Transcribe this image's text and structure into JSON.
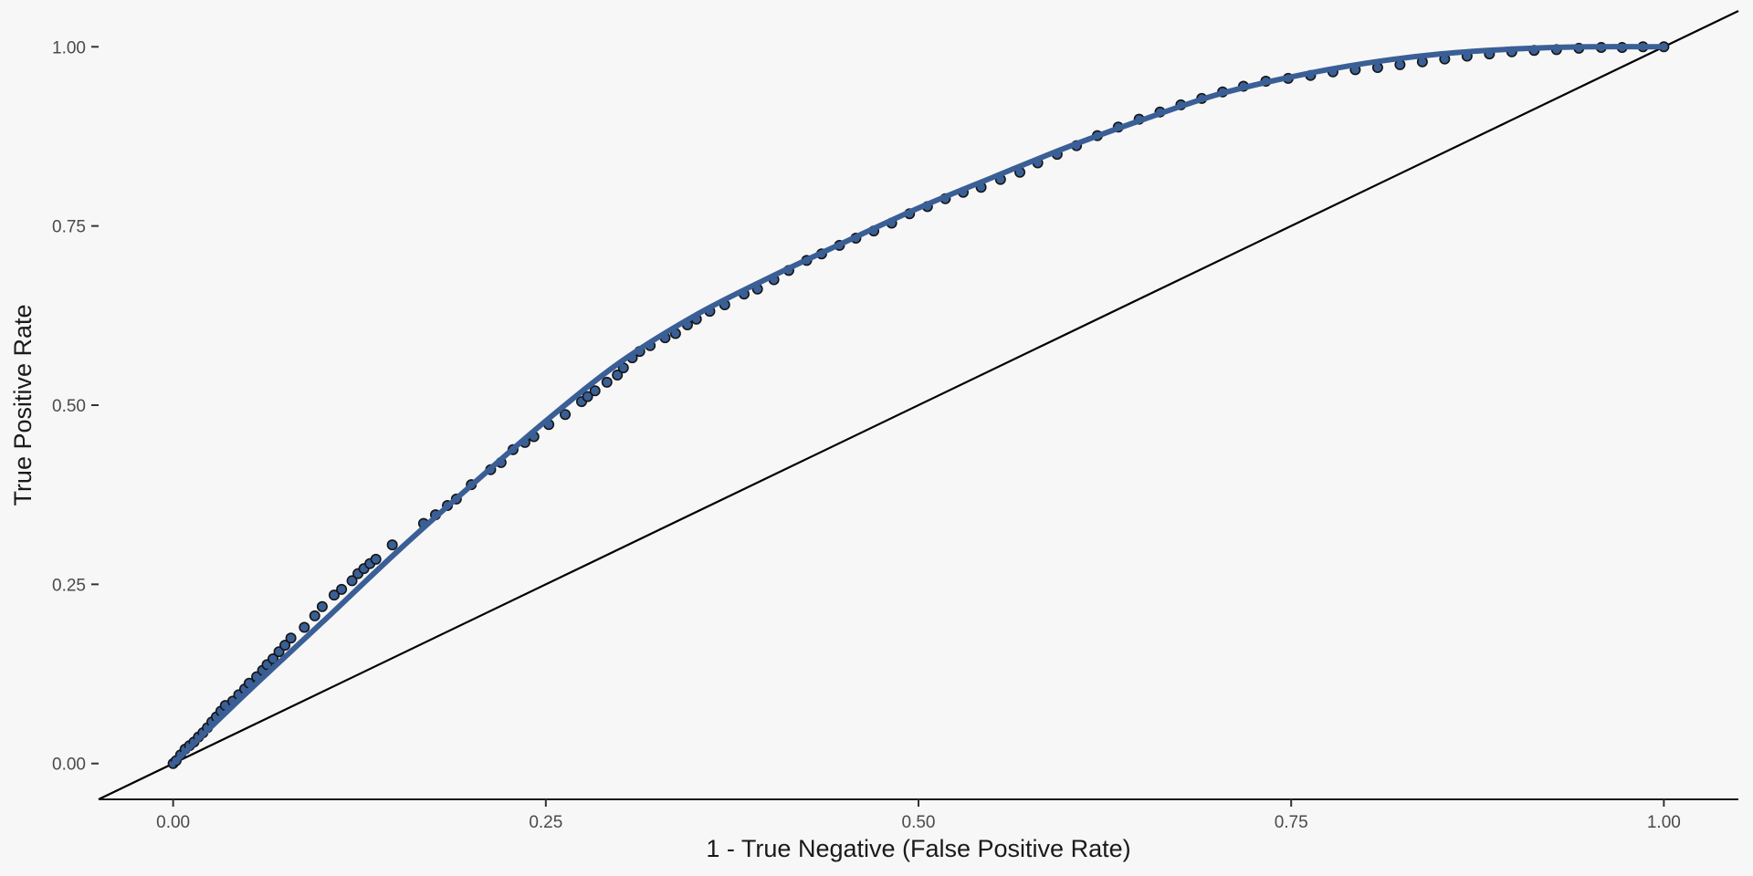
{
  "chart_data": {
    "type": "scatter",
    "title": "",
    "xlabel": "1 - True Negative (False Positive Rate)",
    "ylabel": "True Positive Rate",
    "xlim": [
      -0.05,
      1.05
    ],
    "ylim": [
      -0.05,
      1.05
    ],
    "x_ticks": [
      0,
      0.25,
      0.5,
      0.75,
      1
    ],
    "x_tick_labels": [
      "0.00",
      "0.25",
      "0.50",
      "0.75",
      "1.00"
    ],
    "y_ticks": [
      0,
      0.25,
      0.5,
      0.75,
      1
    ],
    "y_tick_labels": [
      "0.00",
      "0.25",
      "0.50",
      "0.75",
      "1.00"
    ],
    "grid": false,
    "legend": "none",
    "colors": {
      "background": "#f8f7f8",
      "point_fill": "#3a5f96",
      "point_stroke": "#151515",
      "smooth_line": "#3a5f96",
      "reference_line": "#000000"
    },
    "reference_line": {
      "intercept": 0,
      "slope": 1
    },
    "series": [
      {
        "points": [
          [
            0.0,
            0.0
          ],
          [
            0.002,
            0.004
          ],
          [
            0.005,
            0.012
          ],
          [
            0.008,
            0.02
          ],
          [
            0.011,
            0.025
          ],
          [
            0.014,
            0.03
          ],
          [
            0.017,
            0.037
          ],
          [
            0.02,
            0.043
          ],
          [
            0.023,
            0.05
          ],
          [
            0.026,
            0.058
          ],
          [
            0.029,
            0.065
          ],
          [
            0.032,
            0.073
          ],
          [
            0.035,
            0.081
          ],
          [
            0.04,
            0.087
          ],
          [
            0.044,
            0.096
          ],
          [
            0.048,
            0.104
          ],
          [
            0.051,
            0.112
          ],
          [
            0.056,
            0.121
          ],
          [
            0.06,
            0.13
          ],
          [
            0.063,
            0.138
          ],
          [
            0.067,
            0.146
          ],
          [
            0.071,
            0.156
          ],
          [
            0.075,
            0.165
          ],
          [
            0.079,
            0.175
          ],
          [
            0.088,
            0.19
          ],
          [
            0.095,
            0.206
          ],
          [
            0.1,
            0.219
          ],
          [
            0.108,
            0.235
          ],
          [
            0.113,
            0.243
          ],
          [
            0.12,
            0.255
          ],
          [
            0.124,
            0.265
          ],
          [
            0.128,
            0.272
          ],
          [
            0.132,
            0.279
          ],
          [
            0.136,
            0.285
          ],
          [
            0.147,
            0.305
          ],
          [
            0.168,
            0.335
          ],
          [
            0.176,
            0.347
          ],
          [
            0.184,
            0.36
          ],
          [
            0.19,
            0.369
          ],
          [
            0.2,
            0.389
          ],
          [
            0.213,
            0.41
          ],
          [
            0.22,
            0.42
          ],
          [
            0.228,
            0.438
          ],
          [
            0.236,
            0.448
          ],
          [
            0.242,
            0.456
          ],
          [
            0.252,
            0.473
          ],
          [
            0.263,
            0.487
          ],
          [
            0.274,
            0.505
          ],
          [
            0.278,
            0.512
          ],
          [
            0.283,
            0.52
          ],
          [
            0.291,
            0.532
          ],
          [
            0.298,
            0.542
          ],
          [
            0.302,
            0.552
          ],
          [
            0.308,
            0.566
          ],
          [
            0.313,
            0.575
          ],
          [
            0.32,
            0.583
          ],
          [
            0.33,
            0.594
          ],
          [
            0.337,
            0.6
          ],
          [
            0.345,
            0.612
          ],
          [
            0.351,
            0.62
          ],
          [
            0.36,
            0.631
          ],
          [
            0.37,
            0.64
          ],
          [
            0.383,
            0.655
          ],
          [
            0.392,
            0.662
          ],
          [
            0.403,
            0.675
          ],
          [
            0.413,
            0.688
          ],
          [
            0.425,
            0.702
          ],
          [
            0.435,
            0.711
          ],
          [
            0.447,
            0.723
          ],
          [
            0.458,
            0.733
          ],
          [
            0.47,
            0.743
          ],
          [
            0.482,
            0.754
          ],
          [
            0.494,
            0.767
          ],
          [
            0.506,
            0.777
          ],
          [
            0.518,
            0.788
          ],
          [
            0.53,
            0.797
          ],
          [
            0.542,
            0.804
          ],
          [
            0.555,
            0.815
          ],
          [
            0.568,
            0.825
          ],
          [
            0.58,
            0.838
          ],
          [
            0.593,
            0.85
          ],
          [
            0.606,
            0.862
          ],
          [
            0.62,
            0.876
          ],
          [
            0.634,
            0.888
          ],
          [
            0.648,
            0.899
          ],
          [
            0.662,
            0.909
          ],
          [
            0.676,
            0.919
          ],
          [
            0.69,
            0.928
          ],
          [
            0.704,
            0.937
          ],
          [
            0.718,
            0.945
          ],
          [
            0.733,
            0.952
          ],
          [
            0.748,
            0.956
          ],
          [
            0.763,
            0.96
          ],
          [
            0.778,
            0.965
          ],
          [
            0.793,
            0.968
          ],
          [
            0.808,
            0.971
          ],
          [
            0.823,
            0.975
          ],
          [
            0.838,
            0.979
          ],
          [
            0.853,
            0.983
          ],
          [
            0.868,
            0.987
          ],
          [
            0.883,
            0.99
          ],
          [
            0.898,
            0.993
          ],
          [
            0.913,
            0.995
          ],
          [
            0.928,
            0.996
          ],
          [
            0.943,
            0.998
          ],
          [
            0.958,
            0.999
          ],
          [
            0.972,
            0.999
          ],
          [
            0.986,
            1.0
          ],
          [
            1.0,
            1.0
          ]
        ]
      }
    ],
    "smooth_curve": [
      [
        0.0,
        0.0
      ],
      [
        0.05,
        0.1
      ],
      [
        0.1,
        0.197
      ],
      [
        0.15,
        0.295
      ],
      [
        0.2,
        0.388
      ],
      [
        0.25,
        0.478
      ],
      [
        0.3,
        0.56
      ],
      [
        0.35,
        0.625
      ],
      [
        0.4,
        0.678
      ],
      [
        0.45,
        0.727
      ],
      [
        0.5,
        0.775
      ],
      [
        0.55,
        0.818
      ],
      [
        0.6,
        0.86
      ],
      [
        0.65,
        0.898
      ],
      [
        0.7,
        0.933
      ],
      [
        0.75,
        0.958
      ],
      [
        0.8,
        0.977
      ],
      [
        0.85,
        0.99
      ],
      [
        0.9,
        0.997
      ],
      [
        0.95,
        1.0
      ],
      [
        1.0,
        1.0
      ]
    ]
  }
}
